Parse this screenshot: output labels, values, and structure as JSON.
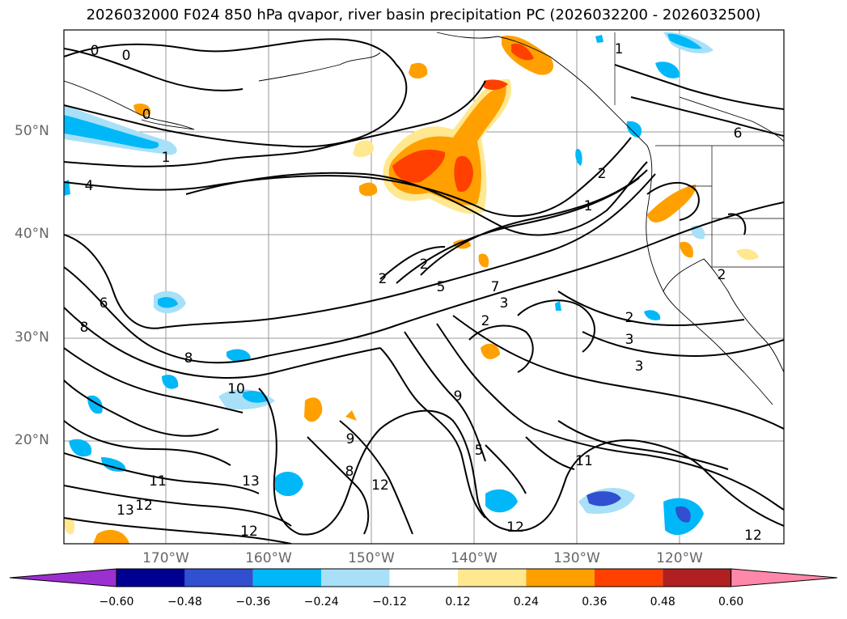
{
  "title": "2026032000 F024 850 hPa qvapor, river basin precipitation PC (2026032200 - 2026032500)",
  "map": {
    "lat_labels": [
      "50°N",
      "40°N",
      "30°N",
      "20°N"
    ],
    "lon_labels": [
      "170°W",
      "160°W",
      "150°W",
      "140°W",
      "130°W",
      "120°W"
    ],
    "contour_labels": [
      "0",
      "0",
      "0",
      "1",
      "1",
      "1",
      "2",
      "2",
      "2",
      "2",
      "2",
      "2",
      "3",
      "3",
      "3",
      "4",
      "5",
      "5",
      "6",
      "6",
      "7",
      "8",
      "8",
      "8",
      "9",
      "9",
      "10",
      "11",
      "11",
      "12",
      "12",
      "12",
      "12",
      "12",
      "13",
      "13"
    ]
  },
  "colorbar": {
    "colors": [
      "#9b30d0",
      "#000090",
      "#3050d0",
      "#00b8f8",
      "#a8e0f8",
      "#ffffff",
      "#ffe890",
      "#ffa000",
      "#ff4000",
      "#b02020",
      "#ff88aa"
    ],
    "tick_labels": [
      "−0.60",
      "−0.48",
      "−0.36",
      "−0.24",
      "−0.12",
      "0.12",
      "0.24",
      "0.36",
      "0.48",
      "0.60"
    ]
  }
}
